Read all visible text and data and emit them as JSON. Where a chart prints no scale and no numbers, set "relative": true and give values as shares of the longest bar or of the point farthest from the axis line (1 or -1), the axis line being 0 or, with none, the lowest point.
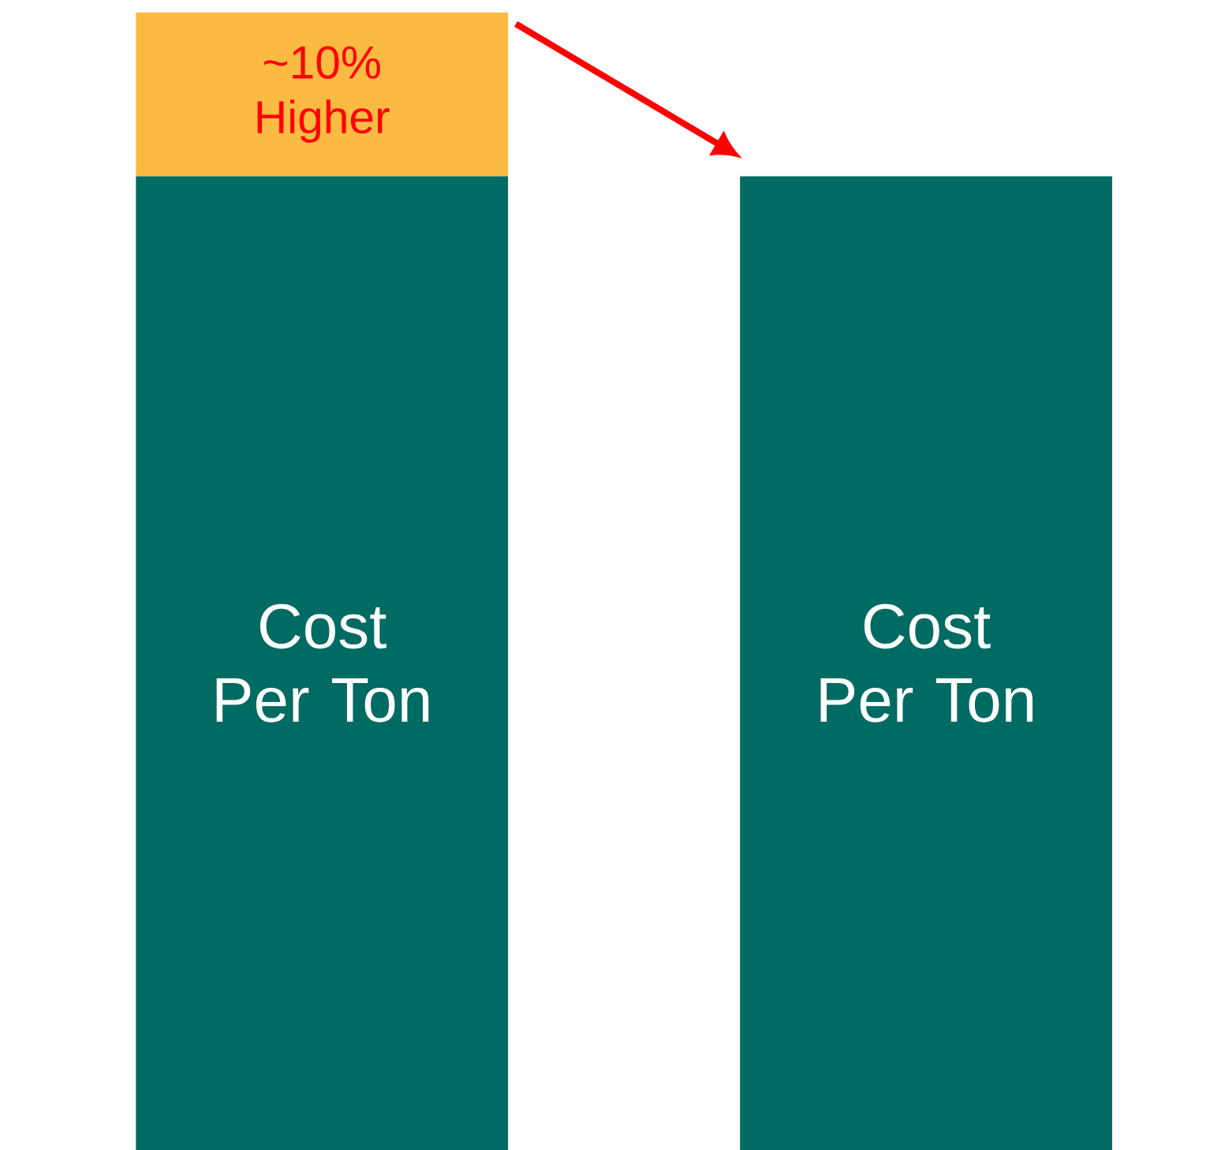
{
  "chart_data": {
    "type": "bar",
    "stacked": true,
    "relative": true,
    "categories": [
      null,
      null
    ],
    "series": [
      {
        "color": "#006b62",
        "values": [
          0.856,
          0.856
        ]
      },
      {
        "color": "#fbbb42",
        "values": [
          0.144,
          null
        ]
      }
    ],
    "annotations": [
      "~10% Higher",
      "Cost Per Ton",
      "Cost Per Ton"
    ]
  }
}
